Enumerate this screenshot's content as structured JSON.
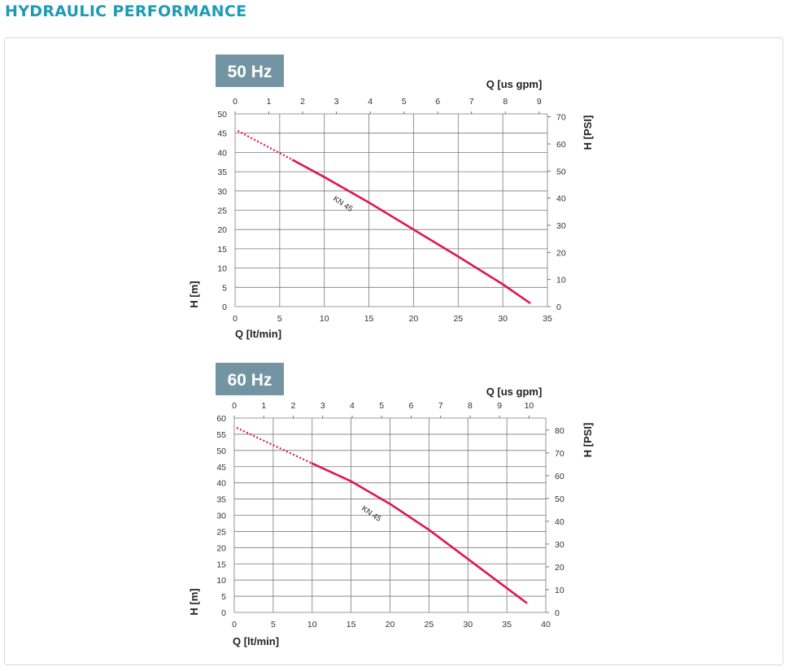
{
  "page": {
    "title": "HYDRAULIC PERFORMANCE"
  },
  "colors": {
    "title": "#1d9bb5",
    "badge_bg": "#7395a3",
    "curve": "#e0164f",
    "grid": "#7a7a7a"
  },
  "chart_data": [
    {
      "type": "line",
      "badge": "50 Hz",
      "xlabel": "Q [lt/min]",
      "ylabel": "H [m]",
      "x2label": "Q [us gpm]",
      "y2label": "H [PSI]",
      "xlim": [
        0,
        35
      ],
      "ylim": [
        0,
        50
      ],
      "x2lim": [
        0,
        9.246
      ],
      "y2lim": [
        0,
        71.1
      ],
      "x_ticks": [
        0,
        5,
        10,
        15,
        20,
        25,
        30,
        35
      ],
      "y_ticks": [
        0,
        5,
        10,
        15,
        20,
        25,
        30,
        35,
        40,
        45,
        50
      ],
      "x2_ticks": [
        0,
        1,
        2,
        3,
        4,
        5,
        6,
        7,
        8,
        9
      ],
      "y2_ticks": [
        0,
        10,
        20,
        30,
        40,
        50,
        60,
        70
      ],
      "grid": true,
      "series": [
        {
          "name": "KN 45",
          "dotted": [
            [
              0.3,
              45.6
            ],
            [
              6.5,
              38.0
            ]
          ],
          "solid": [
            [
              6.5,
              38.0
            ],
            [
              10,
              33.6
            ],
            [
              15,
              27.0
            ],
            [
              20,
              20.0
            ],
            [
              25,
              13.0
            ],
            [
              30,
              5.8
            ],
            [
              33,
              1.0
            ]
          ]
        }
      ]
    },
    {
      "type": "line",
      "badge": "60 Hz",
      "xlabel": "Q [lt/min]",
      "ylabel": "H [m]",
      "x2label": "Q [us gpm]",
      "y2label": "H [PSI]",
      "xlim": [
        0,
        40
      ],
      "ylim": [
        0,
        60
      ],
      "x2lim": [
        0,
        10.567
      ],
      "y2lim": [
        0,
        85.3
      ],
      "x_ticks": [
        0,
        5,
        10,
        15,
        20,
        25,
        30,
        35,
        40
      ],
      "y_ticks": [
        0,
        5,
        10,
        15,
        20,
        25,
        30,
        35,
        40,
        45,
        50,
        55,
        60
      ],
      "x2_ticks": [
        0,
        1,
        2,
        3,
        4,
        5,
        6,
        7,
        8,
        9,
        10
      ],
      "y2_ticks": [
        0,
        10,
        20,
        30,
        40,
        50,
        60,
        70,
        80
      ],
      "grid": true,
      "series": [
        {
          "name": "KN 45",
          "dotted": [
            [
              0.3,
              57.0
            ],
            [
              10,
              46.0
            ]
          ],
          "solid": [
            [
              10,
              46.0
            ],
            [
              15,
              40.5
            ],
            [
              20,
              33.5
            ],
            [
              25,
              25.5
            ],
            [
              30,
              16.5
            ],
            [
              35,
              7.5
            ],
            [
              37.5,
              3.0
            ]
          ]
        }
      ]
    }
  ]
}
